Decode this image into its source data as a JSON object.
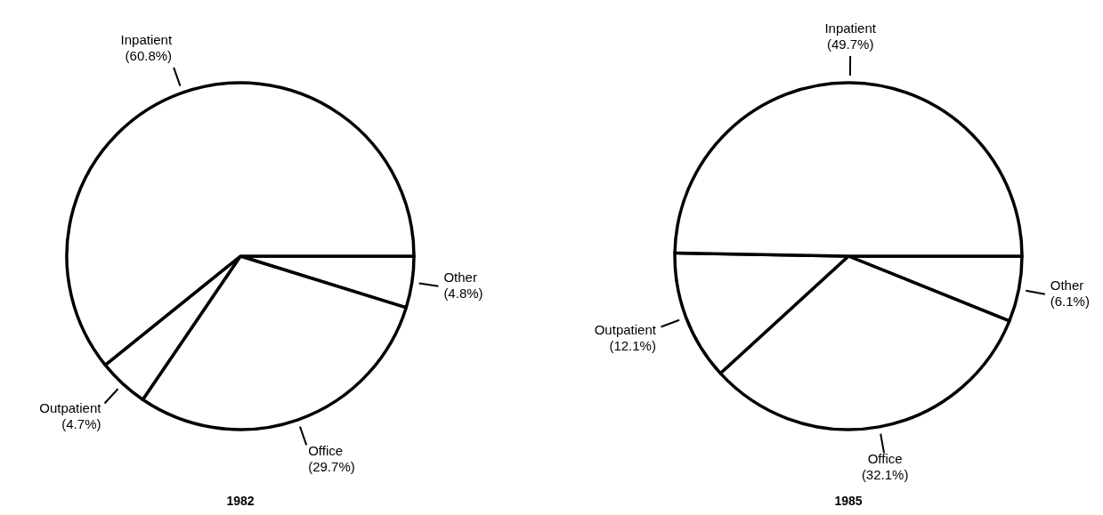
{
  "chart_data": [
    {
      "type": "pie",
      "title": "1982",
      "categories": [
        "Other",
        "Office",
        "Outpatient",
        "Inpatient"
      ],
      "values": [
        4.8,
        29.7,
        4.7,
        60.8
      ],
      "value_labels": [
        "(4.8%)",
        "(29.7%)",
        "(4.7%)",
        "(60.8%)"
      ],
      "colors": [
        "#ffffff",
        "#ffffff",
        "#ffffff",
        "#ffffff"
      ]
    },
    {
      "type": "pie",
      "title": "1985",
      "categories": [
        "Other",
        "Office",
        "Outpatient",
        "Inpatient"
      ],
      "values": [
        6.1,
        32.1,
        12.1,
        49.7
      ],
      "value_labels": [
        "(6.1%)",
        "(32.1%)",
        "(12.1%)",
        "(49.7%)"
      ],
      "colors": [
        "#ffffff",
        "#ffffff",
        "#ffffff",
        "#ffffff"
      ]
    }
  ]
}
